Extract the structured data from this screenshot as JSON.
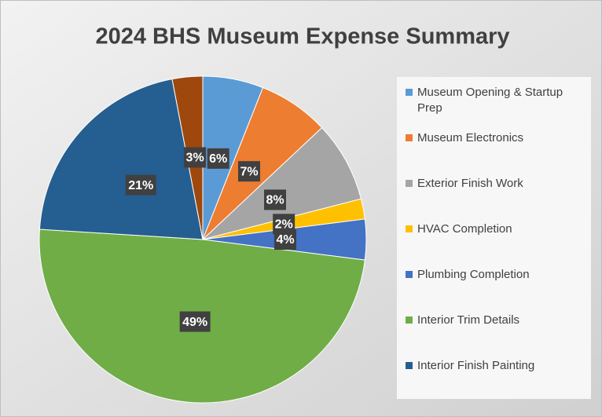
{
  "chart_data": {
    "type": "pie",
    "title": "2024 BHS Museum Expense Summary",
    "categories": [
      "Museum Opening & Startup Prep",
      "Museum Electronics",
      "Exterior Finish Work",
      "HVAC Completion",
      "Plumbing Completion",
      "Interior Trim Details",
      "Interior Finish Painting",
      null
    ],
    "values": [
      6,
      7,
      8,
      2,
      4,
      49,
      21,
      3
    ],
    "value_labels": [
      "6%",
      "7%",
      "8%",
      "2%",
      "4%",
      "49%",
      "21%",
      "3%"
    ],
    "colors": [
      "#5b9bd5",
      "#ed7d31",
      "#a5a5a5",
      "#ffc000",
      "#4472c4",
      "#70ad47",
      "#255e91",
      "#9e480e"
    ],
    "legend": "right"
  }
}
